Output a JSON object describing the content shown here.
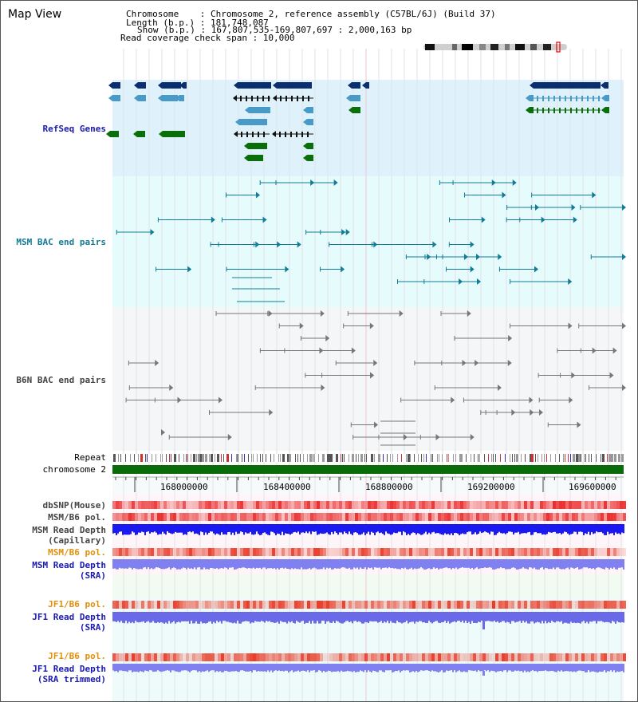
{
  "view_title": "Map View",
  "info": {
    "chromosome": "Chromosome    : Chromosome 2, reference assembly (C57BL/6J) (Build 37)",
    "length": "Length (b.p.) : 181,748,087",
    "show": "Show (b.p.) : 167,807,535-169,807,697 : 2,000,163 bp",
    "span": "Read coverage check span : 10,000"
  },
  "tracks": {
    "refseq": "RefSeq Genes",
    "msm_bac": "MSM BAC end pairs",
    "b6n_bac": "B6N BAC end pairs",
    "repeat": "Repeat",
    "chromosome": "chromosome 2",
    "dbsnp": "dbSNP(Mouse)",
    "msm_b6_pol_1": "MSM/B6 pol.",
    "msm_read_depth_cap_1": "MSM Read Depth",
    "msm_read_depth_cap_2": "(Capillary)",
    "msm_b6_pol_2": "MSM/B6 pol.",
    "msm_read_depth_sra_1": "MSM Read Depth",
    "msm_read_depth_sra_2": "(SRA)",
    "jf1_b6_pol_1": "JF1/B6 pol.",
    "jf1_read_depth_sra_1": "JF1 Read Depth",
    "jf1_read_depth_sra_2": "(SRA)",
    "jf1_b6_pol_2": "JF1/B6 pol.",
    "jf1_read_depth_trim_1": "JF1 Read Depth",
    "jf1_read_depth_trim_2": "(SRA trimmed)"
  },
  "axis_ticks": [
    "168000000",
    "168400000",
    "168800000",
    "169200000",
    "169600000"
  ],
  "colors": {
    "refseq_bg": "#dff1fa",
    "msm_bg": "#e6fbfb",
    "b6n_bg": "#f5f6f8",
    "gene_dark": "#0a2e6e",
    "gene_mid": "#4a9ac8",
    "gene_green": "#0a6e0a",
    "msm_line": "#117c96",
    "b6n_line": "#777777",
    "chromosome_bar": "#0a6b0a",
    "label_blue": "#1a1ab0",
    "label_teal": "#117c96",
    "label_gray": "#444444",
    "label_orange": "#e0900a",
    "cap_depth": "#1a1af0",
    "sra_depth": "#8080f0",
    "jf1_depth": "#6a6ae8"
  }
}
